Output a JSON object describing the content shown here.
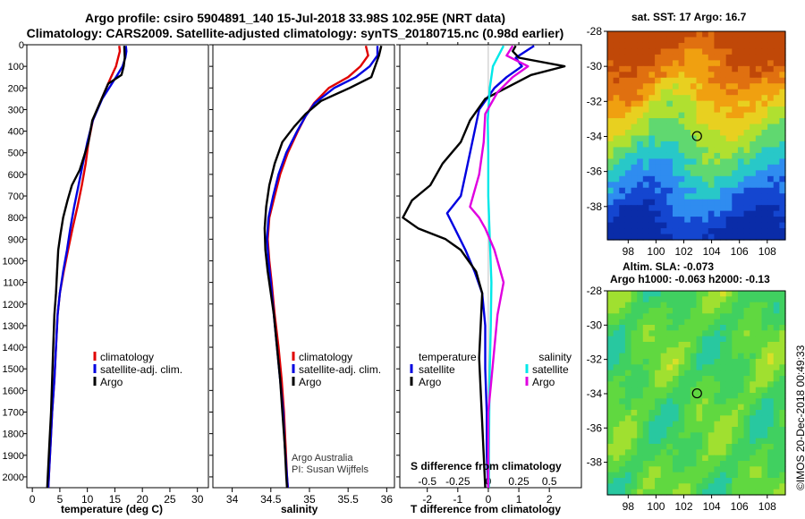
{
  "header": {
    "line1": "Argo profile: csiro 5904891_140 15-Jul-2018 33.98S 102.95E (NRT data)",
    "line2": "Climatology: CARS2009. Satellite-adjusted climatology: synTS_20180715.nc (0.98d earlier)"
  },
  "colors": {
    "climatology": "#e00000",
    "satellite": "#0000e0",
    "argo": "#000000",
    "s_satellite": "#00e8e8",
    "s_argo": "#e000e0"
  },
  "legend": {
    "climatology": "climatology",
    "satellite": "satellite-adj. clim.",
    "argo": "Argo"
  },
  "diff_legend": {
    "temperature": "temperature",
    "salinity": "salinity",
    "t_satellite": "satellite",
    "t_argo": "Argo",
    "s_satellite": "satellite",
    "s_argo": "Argo"
  },
  "credits": {
    "line1": "Argo Australia",
    "line2": "PI: Susan Wijffels"
  },
  "map_sst": {
    "title": "sat. SST: 17 Argo: 16.7"
  },
  "map_sla": {
    "title1": "Altim. SLA: -0.073",
    "title2": "Argo h1000: -0.063 h2000: -0.13"
  },
  "side_credit": "©IMOS 20-Dec-2018 00:49:33",
  "chart_data": [
    {
      "type": "line",
      "xlabel": "temperature (deg C)",
      "ylabel": "",
      "xlim": [
        -1,
        32
      ],
      "ylim": [
        2050,
        0
      ],
      "x_ticks": [
        0,
        5,
        10,
        15,
        20,
        25,
        30
      ],
      "y_ticks": [
        0,
        100,
        200,
        300,
        400,
        500,
        600,
        700,
        800,
        900,
        1000,
        1100,
        1200,
        1300,
        1400,
        1500,
        1600,
        1700,
        1800,
        1900,
        2000
      ],
      "series": [
        {
          "name": "climatology",
          "color_key": "climatology",
          "points": [
            [
              15.8,
              5
            ],
            [
              15.9,
              30
            ],
            [
              15.6,
              60
            ],
            [
              15.2,
              100
            ],
            [
              14.3,
              150
            ],
            [
              12.6,
              250
            ],
            [
              11.0,
              350
            ],
            [
              10.2,
              450
            ],
            [
              9.7,
              550
            ],
            [
              9.0,
              650
            ],
            [
              8.2,
              750
            ],
            [
              7.3,
              850
            ],
            [
              6.5,
              950
            ],
            [
              5.7,
              1050
            ],
            [
              5.0,
              1150
            ],
            [
              4.6,
              1250
            ],
            [
              4.3,
              1400
            ],
            [
              4.0,
              1550
            ],
            [
              3.6,
              1700
            ],
            [
              3.3,
              1850
            ],
            [
              3.0,
              2000
            ],
            [
              2.9,
              2050
            ]
          ]
        },
        {
          "name": "satellite-adj. clim.",
          "color_key": "satellite",
          "points": [
            [
              17.0,
              5
            ],
            [
              17.1,
              30
            ],
            [
              16.9,
              60
            ],
            [
              16.4,
              100
            ],
            [
              15.2,
              150
            ],
            [
              12.7,
              250
            ],
            [
              11.0,
              350
            ],
            [
              10.0,
              450
            ],
            [
              9.2,
              550
            ],
            [
              8.4,
              650
            ],
            [
              7.6,
              750
            ],
            [
              6.9,
              850
            ],
            [
              6.3,
              950
            ],
            [
              5.6,
              1050
            ],
            [
              5.0,
              1150
            ],
            [
              4.6,
              1250
            ],
            [
              4.3,
              1400
            ],
            [
              4.0,
              1550
            ],
            [
              3.6,
              1700
            ],
            [
              3.3,
              1850
            ],
            [
              3.0,
              2000
            ],
            [
              2.9,
              2050
            ]
          ]
        },
        {
          "name": "Argo",
          "color_key": "argo",
          "points": [
            [
              16.7,
              5
            ],
            [
              16.8,
              60
            ],
            [
              16.6,
              100
            ],
            [
              16.2,
              140
            ],
            [
              13.8,
              180
            ],
            [
              12.6,
              250
            ],
            [
              10.9,
              350
            ],
            [
              10.2,
              450
            ],
            [
              9.6,
              500
            ],
            [
              8.6,
              580
            ],
            [
              7.2,
              650
            ],
            [
              6.4,
              720
            ],
            [
              5.6,
              800
            ],
            [
              5.1,
              880
            ],
            [
              4.7,
              950
            ],
            [
              4.5,
              1050
            ],
            [
              4.3,
              1150
            ],
            [
              4.0,
              1250
            ],
            [
              3.8,
              1400
            ],
            [
              3.6,
              1550
            ],
            [
              3.4,
              1700
            ],
            [
              3.1,
              1850
            ],
            [
              2.8,
              2000
            ],
            [
              2.7,
              2050
            ]
          ]
        }
      ]
    },
    {
      "type": "line",
      "xlabel": "salinity",
      "ylabel": "",
      "xlim": [
        33.75,
        36.1
      ],
      "ylim": [
        2050,
        0
      ],
      "x_ticks": [
        34,
        34.5,
        35,
        35.5,
        36
      ],
      "tick_labels": [
        "34",
        "34.5",
        "35",
        "35.5",
        "36"
      ],
      "series": [
        {
          "name": "climatology",
          "color_key": "climatology",
          "points": [
            [
              35.73,
              5
            ],
            [
              35.76,
              50
            ],
            [
              35.66,
              100
            ],
            [
              35.5,
              150
            ],
            [
              35.25,
              200
            ],
            [
              35.06,
              270
            ],
            [
              34.95,
              330
            ],
            [
              34.85,
              400
            ],
            [
              34.72,
              500
            ],
            [
              34.62,
              600
            ],
            [
              34.55,
              700
            ],
            [
              34.48,
              800
            ],
            [
              34.46,
              900
            ],
            [
              34.48,
              1000
            ],
            [
              34.51,
              1100
            ],
            [
              34.55,
              1250
            ],
            [
              34.6,
              1400
            ],
            [
              34.64,
              1550
            ],
            [
              34.67,
              1700
            ],
            [
              34.69,
              1850
            ],
            [
              34.71,
              2000
            ],
            [
              34.72,
              2050
            ]
          ]
        },
        {
          "name": "satellite-adj. clim.",
          "color_key": "satellite",
          "points": [
            [
              35.88,
              5
            ],
            [
              35.88,
              50
            ],
            [
              35.78,
              100
            ],
            [
              35.6,
              150
            ],
            [
              35.32,
              200
            ],
            [
              35.07,
              270
            ],
            [
              34.95,
              330
            ],
            [
              34.84,
              400
            ],
            [
              34.7,
              500
            ],
            [
              34.6,
              600
            ],
            [
              34.53,
              700
            ],
            [
              34.47,
              800
            ],
            [
              34.45,
              900
            ],
            [
              34.47,
              1000
            ],
            [
              34.5,
              1100
            ],
            [
              34.54,
              1250
            ],
            [
              34.58,
              1400
            ],
            [
              34.62,
              1550
            ],
            [
              34.66,
              1700
            ],
            [
              34.68,
              1850
            ],
            [
              34.71,
              2000
            ],
            [
              34.72,
              2050
            ]
          ]
        },
        {
          "name": "Argo",
          "color_key": "argo",
          "points": [
            [
              35.93,
              5
            ],
            [
              35.9,
              50
            ],
            [
              35.85,
              100
            ],
            [
              35.8,
              150
            ],
            [
              35.52,
              200
            ],
            [
              35.15,
              260
            ],
            [
              34.95,
              320
            ],
            [
              34.8,
              380
            ],
            [
              34.65,
              450
            ],
            [
              34.55,
              550
            ],
            [
              34.48,
              650
            ],
            [
              34.44,
              750
            ],
            [
              34.42,
              850
            ],
            [
              34.43,
              950
            ],
            [
              34.46,
              1050
            ],
            [
              34.5,
              1150
            ],
            [
              34.54,
              1250
            ],
            [
              34.58,
              1400
            ],
            [
              34.62,
              1550
            ],
            [
              34.65,
              1700
            ],
            [
              34.68,
              1850
            ],
            [
              34.7,
              2000
            ],
            [
              34.71,
              2050
            ]
          ]
        }
      ]
    },
    {
      "type": "line",
      "xlabel": "T difference from climatology",
      "secondary_xlabel": "S difference from climatology",
      "ylabel": "",
      "xlim": [
        -2.9,
        3.05
      ],
      "ylim": [
        2050,
        0
      ],
      "x_ticks": [
        -2,
        -1,
        0,
        1,
        2
      ],
      "top_ticks": [
        -2,
        -1,
        0,
        1,
        2
      ],
      "top_tick_labels": [
        "-0.5",
        "-0.25",
        "0",
        "0.25",
        "0.5"
      ],
      "series": [
        {
          "name": "T satellite",
          "color_key": "satellite",
          "points": [
            [
              1.5,
              5
            ],
            [
              0.9,
              60
            ],
            [
              1.1,
              100
            ],
            [
              0.6,
              150
            ],
            [
              0.2,
              200
            ],
            [
              -0.3,
              300
            ],
            [
              -0.45,
              400
            ],
            [
              -0.6,
              500
            ],
            [
              -0.75,
              600
            ],
            [
              -0.9,
              700
            ],
            [
              -1.35,
              780
            ],
            [
              -1.1,
              850
            ],
            [
              -0.75,
              950
            ],
            [
              -0.45,
              1050
            ],
            [
              -0.2,
              1150
            ],
            [
              -0.1,
              1300
            ],
            [
              -0.1,
              1500
            ],
            [
              -0.05,
              1700
            ],
            [
              -0.05,
              1900
            ],
            [
              0,
              2050
            ]
          ]
        },
        {
          "name": "T Argo",
          "color_key": "argo",
          "points": [
            [
              0.9,
              5
            ],
            [
              0.8,
              30
            ],
            [
              1.0,
              60
            ],
            [
              2.5,
              100
            ],
            [
              1.4,
              140
            ],
            [
              -0.1,
              250
            ],
            [
              -0.6,
              350
            ],
            [
              -0.9,
              450
            ],
            [
              -1.5,
              550
            ],
            [
              -1.9,
              650
            ],
            [
              -2.5,
              720
            ],
            [
              -2.8,
              800
            ],
            [
              -2.3,
              850
            ],
            [
              -1.4,
              900
            ],
            [
              -0.9,
              950
            ],
            [
              -0.4,
              1050
            ],
            [
              -0.2,
              1150
            ],
            [
              -0.25,
              1300
            ],
            [
              -0.3,
              1450
            ],
            [
              -0.25,
              1600
            ],
            [
              -0.2,
              1750
            ],
            [
              -0.15,
              1900
            ],
            [
              -0.1,
              2050
            ]
          ]
        },
        {
          "name": "S satellite",
          "color_key": "s_satellite",
          "points": [
            [
              0.5,
              5
            ],
            [
              0.15,
              100
            ],
            [
              0.05,
              200
            ],
            [
              -0.02,
              350
            ],
            [
              0.0,
              500
            ],
            [
              0.0,
              700
            ],
            [
              0.05,
              900
            ],
            [
              0.1,
              1100
            ],
            [
              0.08,
              1300
            ],
            [
              0.05,
              1500
            ],
            [
              0.03,
              1700
            ],
            [
              0.02,
              1900
            ],
            [
              0.02,
              2050
            ]
          ]
        },
        {
          "name": "S Argo",
          "color_key": "s_argo",
          "points": [
            [
              0.8,
              5
            ],
            [
              0.6,
              50
            ],
            [
              1.3,
              100
            ],
            [
              0.8,
              150
            ],
            [
              0.3,
              220
            ],
            [
              -0.1,
              320
            ],
            [
              -0.15,
              450
            ],
            [
              -0.3,
              600
            ],
            [
              -0.5,
              700
            ],
            [
              -0.6,
              750
            ],
            [
              -0.3,
              800
            ],
            [
              -0.1,
              850
            ],
            [
              0.2,
              950
            ],
            [
              0.4,
              1050
            ],
            [
              0.5,
              1100
            ],
            [
              0.3,
              1250
            ],
            [
              0.2,
              1400
            ],
            [
              0.1,
              1550
            ],
            [
              0.0,
              1700
            ],
            [
              0.0,
              1900
            ],
            [
              0.0,
              2050
            ]
          ]
        }
      ]
    },
    {
      "type": "heatmap",
      "title": "sat. SST: 17 Argo: 16.7",
      "xlim": [
        96.5,
        109.3
      ],
      "ylim": [
        -39.9,
        -28
      ],
      "x_ticks": [
        98,
        100,
        102,
        104,
        106,
        108
      ],
      "y_ticks": [
        -28,
        -30,
        -32,
        -34,
        -36,
        -38
      ],
      "marker": [
        102.95,
        -33.98
      ],
      "field_colors": [
        "#0a2ca8",
        "#1446d0",
        "#2f8cf0",
        "#28c8c8",
        "#60d870",
        "#b0e030",
        "#e8d020",
        "#f0a010",
        "#e07010",
        "#c04808"
      ]
    },
    {
      "type": "heatmap",
      "title": "Altim. SLA: -0.073",
      "xlim": [
        96.5,
        109.3
      ],
      "ylim": [
        -39.9,
        -28
      ],
      "x_ticks": [
        98,
        100,
        102,
        104,
        106,
        108
      ],
      "y_ticks": [
        -28,
        -30,
        -32,
        -34,
        -36,
        -38
      ],
      "marker": [
        102.95,
        -33.98
      ],
      "field_colors": [
        "#28c8a0",
        "#40d060",
        "#60d840",
        "#a0e030",
        "#d8e028",
        "#f0d020"
      ]
    }
  ]
}
